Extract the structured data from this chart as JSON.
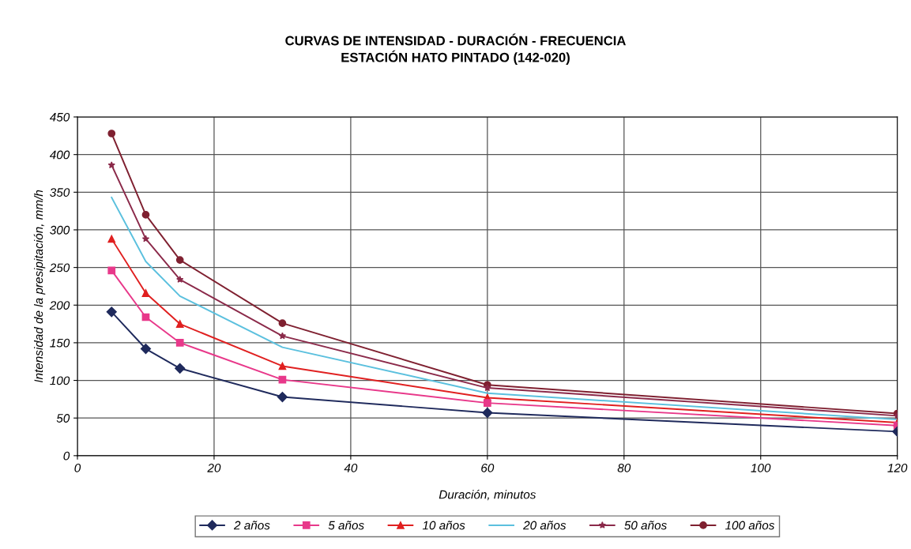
{
  "chart_data": {
    "type": "line",
    "title": "CURVAS DE INTENSIDAD - DURACIÓN - FRECUENCIA\nESTACIÓN HATO PINTADO (142-020)",
    "xlabel": "Duración, minutos",
    "ylabel": "Intensidad de la presipitación, mm/h",
    "x": [
      5,
      10,
      15,
      30,
      60,
      120
    ],
    "series": [
      {
        "name": "2 años",
        "color": "#1f2a5c",
        "marker": "diamond",
        "values": [
          191,
          142,
          116,
          78,
          57,
          32
        ]
      },
      {
        "name": "5 años",
        "color": "#e8388a",
        "marker": "square",
        "values": [
          246,
          184,
          150,
          101,
          70,
          40
        ]
      },
      {
        "name": "10 años",
        "color": "#e02020",
        "marker": "triangle",
        "values": [
          288,
          216,
          175,
          119,
          77,
          44
        ]
      },
      {
        "name": "20 años",
        "color": "#5bc0de",
        "marker": "none",
        "values": [
          343,
          258,
          212,
          144,
          83,
          48
        ]
      },
      {
        "name": "50 años",
        "color": "#8b2a4a",
        "marker": "star",
        "values": [
          386,
          288,
          234,
          159,
          90,
          53
        ]
      },
      {
        "name": "100 años",
        "color": "#7f2030",
        "marker": "circle",
        "values": [
          428,
          320,
          260,
          176,
          94,
          56
        ]
      }
    ],
    "xlim": [
      0,
      120
    ],
    "xticks": [
      0,
      20,
      40,
      60,
      80,
      100,
      120
    ],
    "ylim": [
      0,
      450
    ],
    "yticks": [
      0,
      50,
      100,
      150,
      200,
      250,
      300,
      350,
      400,
      450
    ],
    "grid": true,
    "legend": "bottom",
    "line_style": "solid"
  }
}
